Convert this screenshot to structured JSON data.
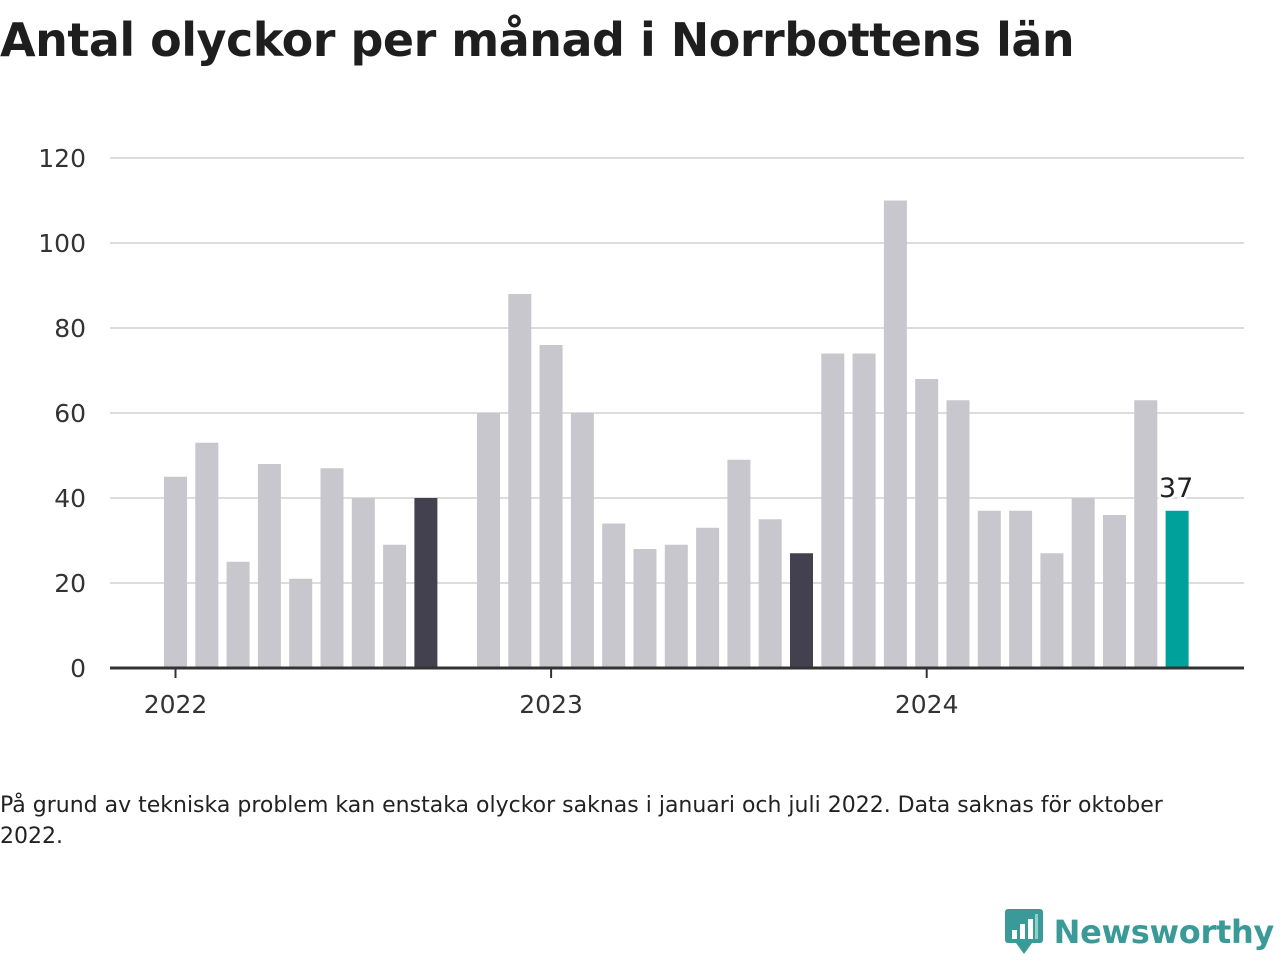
{
  "title": "Antal olyckor per månad i Norrbottens län",
  "note": "På grund av tekniska problem kan enstaka olyckor saknas i januari och juli 2022. Data saknas för oktober 2022.",
  "brand": {
    "name": "Newsworthy",
    "icon": "bar-chart-speech-bubble-icon"
  },
  "colors": {
    "bar_default": "#c8c7ce",
    "bar_same_month_previous_years": "#43414f",
    "bar_latest": "#00a19a",
    "gridline": "#dcdcdc",
    "axis": "#333333",
    "text": "#222222",
    "brand": "#3a9a98"
  },
  "chart_data": {
    "type": "bar",
    "title": "Antal olyckor per månad i Norrbottens län",
    "xlabel": "",
    "ylabel": "",
    "ylim": [
      0,
      120
    ],
    "yticks": [
      0,
      20,
      40,
      60,
      80,
      100,
      120
    ],
    "xtick_labels": [
      {
        "label": "2022",
        "month": "2022-01"
      },
      {
        "label": "2023",
        "month": "2023-01"
      },
      {
        "label": "2024",
        "month": "2024-01"
      }
    ],
    "grid": true,
    "legend": "none",
    "months": [
      "2022-01",
      "2022-02",
      "2022-03",
      "2022-04",
      "2022-05",
      "2022-06",
      "2022-07",
      "2022-08",
      "2022-09",
      "2022-10",
      "2022-11",
      "2022-12",
      "2023-01",
      "2023-02",
      "2023-03",
      "2023-04",
      "2023-05",
      "2023-06",
      "2023-07",
      "2023-08",
      "2023-09",
      "2023-10",
      "2023-11",
      "2023-12",
      "2024-01",
      "2024-02",
      "2024-03",
      "2024-04",
      "2024-05",
      "2024-06",
      "2024-07",
      "2024-08",
      "2024-09"
    ],
    "values": [
      45,
      53,
      25,
      48,
      21,
      47,
      40,
      29,
      40,
      null,
      60,
      88,
      76,
      60,
      34,
      28,
      29,
      33,
      49,
      35,
      27,
      74,
      74,
      110,
      68,
      63,
      37,
      37,
      27,
      40,
      36,
      63,
      37
    ],
    "highlight": {
      "same_month_previous_years": [
        "2022-09",
        "2023-09"
      ],
      "latest": "2024-09"
    },
    "value_labels": [
      {
        "month": "2024-09",
        "label": "37"
      }
    ]
  }
}
